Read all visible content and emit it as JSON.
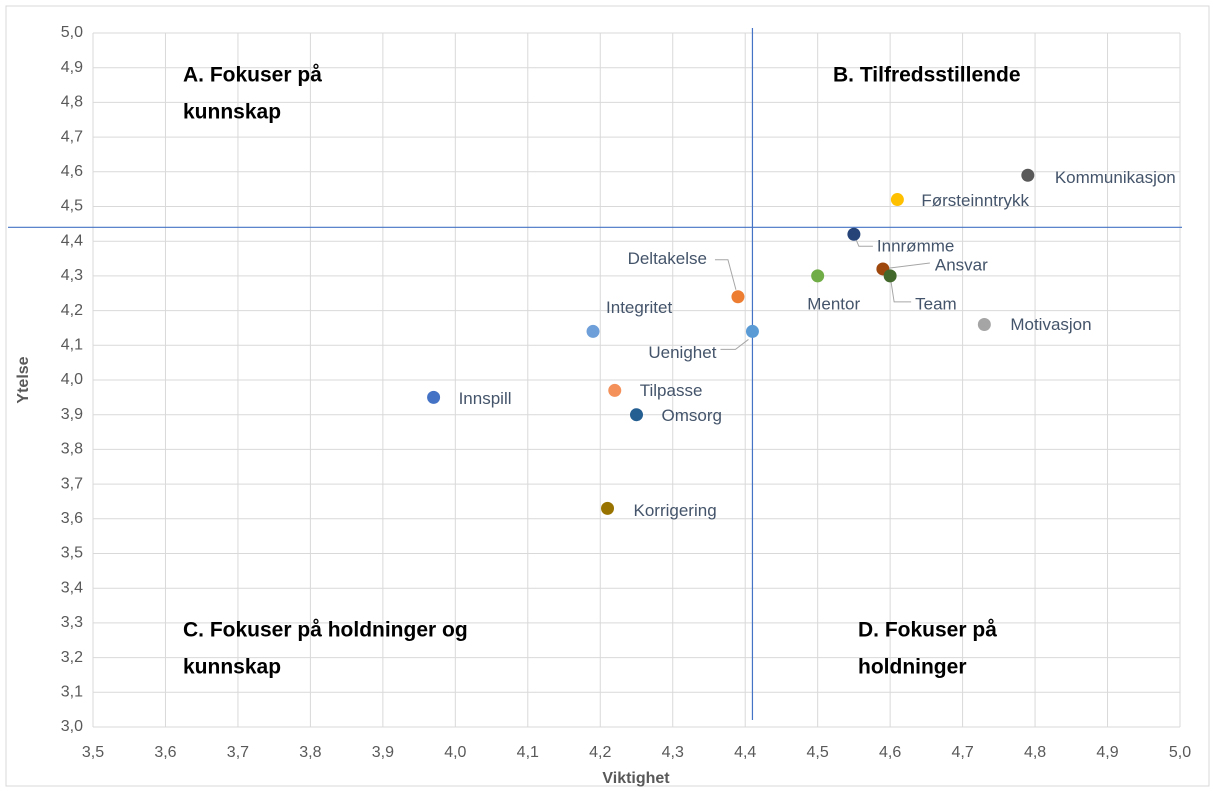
{
  "chart_data": {
    "type": "scatter",
    "x_label": "Viktighet",
    "y_label": "Ytelse",
    "xlim": [
      3.5,
      5.0
    ],
    "ylim": [
      3.0,
      5.0
    ],
    "xticks": [
      {
        "value": 3.5,
        "label": "3,5"
      },
      {
        "value": 3.6,
        "label": "3,6"
      },
      {
        "value": 3.7,
        "label": "3,7"
      },
      {
        "value": 3.8,
        "label": "3,8"
      },
      {
        "value": 3.9,
        "label": "3,9"
      },
      {
        "value": 4.0,
        "label": "4,0"
      },
      {
        "value": 4.1,
        "label": "4,1"
      },
      {
        "value": 4.2,
        "label": "4,2"
      },
      {
        "value": 4.3,
        "label": "4,3"
      },
      {
        "value": 4.4,
        "label": "4,4"
      },
      {
        "value": 4.5,
        "label": "4,5"
      },
      {
        "value": 4.6,
        "label": "4,6"
      },
      {
        "value": 4.7,
        "label": "4,7"
      },
      {
        "value": 4.8,
        "label": "4,8"
      },
      {
        "value": 4.9,
        "label": "4,9"
      },
      {
        "value": 5.0,
        "label": "5,0"
      }
    ],
    "yticks": [
      {
        "value": 3.0,
        "label": "3,0"
      },
      {
        "value": 3.1,
        "label": "3,1"
      },
      {
        "value": 3.2,
        "label": "3,2"
      },
      {
        "value": 3.3,
        "label": "3,3"
      },
      {
        "value": 3.4,
        "label": "3,4"
      },
      {
        "value": 3.5,
        "label": "3,5"
      },
      {
        "value": 3.6,
        "label": "3,6"
      },
      {
        "value": 3.7,
        "label": "3,7"
      },
      {
        "value": 3.8,
        "label": "3,8"
      },
      {
        "value": 3.9,
        "label": "3,9"
      },
      {
        "value": 4.0,
        "label": "4,0"
      },
      {
        "value": 4.1,
        "label": "4,1"
      },
      {
        "value": 4.2,
        "label": "4,2"
      },
      {
        "value": 4.3,
        "label": "4,3"
      },
      {
        "value": 4.4,
        "label": "4,4"
      },
      {
        "value": 4.5,
        "label": "4,5"
      },
      {
        "value": 4.6,
        "label": "4,6"
      },
      {
        "value": 4.7,
        "label": "4,7"
      },
      {
        "value": 4.8,
        "label": "4,8"
      },
      {
        "value": 4.9,
        "label": "4,9"
      },
      {
        "value": 5.0,
        "label": "5,0"
      }
    ],
    "grid": true,
    "reference_lines": {
      "x": 4.41,
      "y": 4.44,
      "color": "#4472c4"
    },
    "annotations": [
      {
        "lines": [
          "A. Fokuser på",
          "kunnskap"
        ]
      },
      {
        "lines": [
          "B. Tilfredsstillende"
        ]
      },
      {
        "lines": [
          "C. Fokuser på holdninger og",
          "kunnskap"
        ]
      },
      {
        "lines": [
          "D. Fokuser på",
          "holdninger"
        ]
      }
    ],
    "series": [
      {
        "name": "Kommunikasjon",
        "color": "#595959",
        "x": 4.79,
        "y": 4.59
      },
      {
        "name": "Førsteinntrykk",
        "color": "#ffc000",
        "x": 4.61,
        "y": 4.52
      },
      {
        "name": "Innrømme",
        "color": "#264478",
        "x": 4.55,
        "y": 4.42
      },
      {
        "name": "Ansvar",
        "color": "#9e480e",
        "x": 4.59,
        "y": 4.32
      },
      {
        "name": "Team",
        "color": "#43682b",
        "x": 4.6,
        "y": 4.3
      },
      {
        "name": "Mentor",
        "color": "#70ad47",
        "x": 4.5,
        "y": 4.3
      },
      {
        "name": "Motivasjon",
        "color": "#a5a5a5",
        "x": 4.73,
        "y": 4.16
      },
      {
        "name": "Deltakelse",
        "color": "#ed7d31",
        "x": 4.39,
        "y": 4.24
      },
      {
        "name": "Uenighet",
        "color": "#5b9bd5",
        "x": 4.41,
        "y": 4.14
      },
      {
        "name": "Integritet",
        "color": "#6f9fd8",
        "x": 4.19,
        "y": 4.14
      },
      {
        "name": "Tilpasse",
        "color": "#f4915a",
        "x": 4.22,
        "y": 3.97
      },
      {
        "name": "Omsorg",
        "color": "#255e91",
        "x": 4.25,
        "y": 3.9
      },
      {
        "name": "Innspill",
        "color": "#4472c4",
        "x": 3.97,
        "y": 3.95
      },
      {
        "name": "Korrigering",
        "color": "#997300",
        "x": 4.21,
        "y": 3.63
      }
    ]
  }
}
